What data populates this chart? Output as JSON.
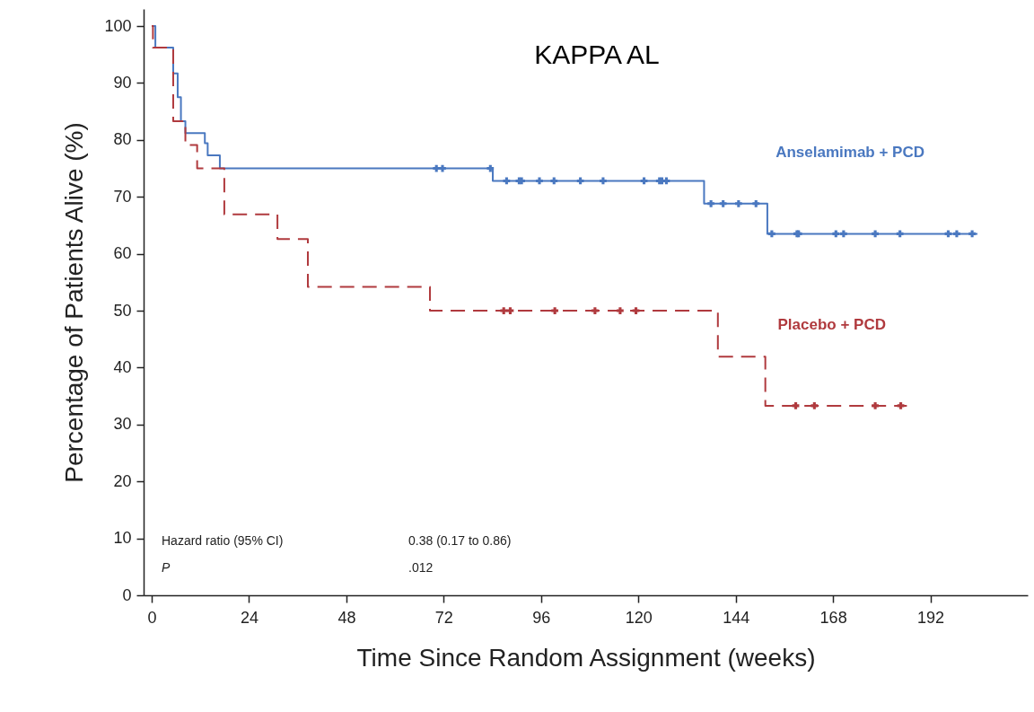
{
  "chart_data": {
    "type": "step",
    "title": "KAPPA AL",
    "xlabel": "Time Since Random Assignment (weeks)",
    "ylabel": "Percentage of Patients Alive (%)",
    "xlim": [
      -2,
      216
    ],
    "xticks": [
      0,
      24,
      48,
      72,
      96,
      120,
      144,
      168,
      192
    ],
    "ylim": [
      0,
      103
    ],
    "yticks": [
      0,
      10,
      20,
      30,
      40,
      50,
      60,
      70,
      80,
      90,
      100
    ],
    "annotations": [
      "Hazard ratio (95% CI)",
      "0.38 (0.17 to 0.86)",
      "P",
      ".012"
    ],
    "series": [
      {
        "name": "Anselamimab + PCD",
        "color": "#4a78c0",
        "line_style": "solid",
        "x": [
          0,
          0.9,
          5.3,
          6.4,
          7.2,
          8.3,
          13.1,
          13.8,
          16.8,
          84.1,
          136.2,
          151.8,
          203.6
        ],
        "values": [
          100,
          96.2,
          91.7,
          87.5,
          83.3,
          81.2,
          79.4,
          77.3,
          75,
          72.8,
          68.8,
          63.5,
          63.5
        ]
      },
      {
        "name": "Placebo + PCD",
        "color": "#b03a3e",
        "line_style": "dashed",
        "x": [
          0,
          0.3,
          5.3,
          8.3,
          11.2,
          17.9,
          31,
          38.5,
          68.6,
          139.6,
          151.3,
          186.2
        ],
        "values": [
          100,
          96.2,
          83.3,
          79.1,
          75,
          66.9,
          62.6,
          54.2,
          50,
          41.9,
          33.3,
          33.3
        ]
      },
      {
        "type": "scatter",
        "color": "#4a78c0",
        "marker": "cross",
        "x": [
          70.2,
          71.7,
          83.5,
          87.5,
          90.6,
          91.2,
          95.6,
          99.2,
          105.7,
          111.3,
          121.4,
          125.2,
          125.8,
          126.9,
          137.9,
          140.9,
          144.7,
          149.0,
          152.9,
          159.1,
          159.5,
          168.7,
          170.6,
          178.4,
          184.5,
          196.4,
          198.5,
          202.3
        ],
        "values": [
          75,
          75,
          75,
          72.8,
          72.8,
          72.8,
          72.8,
          72.8,
          72.8,
          72.8,
          72.8,
          72.8,
          72.8,
          72.8,
          68.8,
          68.8,
          68.8,
          68.8,
          63.5,
          63.5,
          63.5,
          63.5,
          63.5,
          63.5,
          63.5,
          63.5,
          63.5,
          63.5
        ]
      },
      {
        "type": "scatter",
        "color": "#b03a3e",
        "marker": "cross",
        "x": [
          86.8,
          88.4,
          99.4,
          109.3,
          115.5,
          119.4,
          158.8,
          163.4,
          178.4,
          184.7
        ],
        "values": [
          50,
          50,
          50,
          50,
          50,
          50,
          33.3,
          33.3,
          33.3,
          33.3
        ]
      }
    ]
  }
}
